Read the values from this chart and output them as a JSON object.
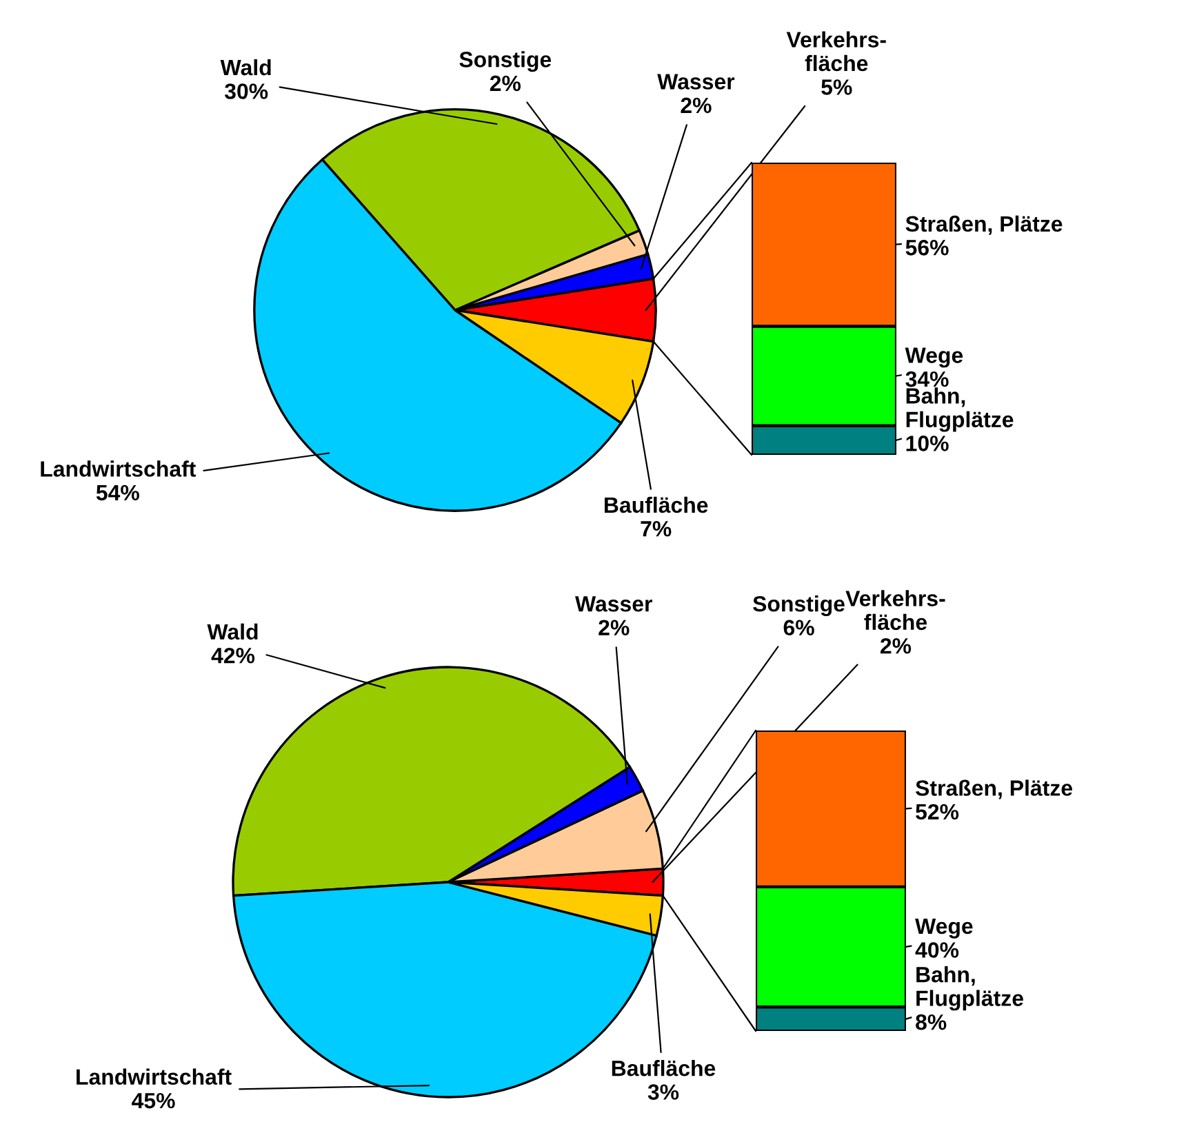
{
  "chart_data": [
    {
      "type": "pie",
      "categories": [
        "Verkehrs-\nfläche",
        "Wasser",
        "Sonstige",
        "Wald",
        "Landwirtschaft",
        "Baufläche"
      ],
      "values": [
        5,
        2,
        2,
        30,
        54,
        7
      ],
      "value_labels": [
        "5%",
        "2%",
        "2%",
        "30%",
        "54%",
        "7%"
      ],
      "colors": [
        "#ff0000",
        "#0000ff",
        "#ffcc99",
        "#99cc00",
        "#00ccff",
        "#ffcc00"
      ]
    },
    {
      "type": "bar",
      "stacked": true,
      "categories": [
        null
      ],
      "series": [
        {
          "name": "Bahn,\nFlugplätze",
          "color": "#008080",
          "values": [
            10
          ],
          "value_labels": [
            "10%"
          ]
        },
        {
          "name": "Wege",
          "color": "#00ff00",
          "values": [
            34
          ],
          "value_labels": [
            "34%"
          ]
        },
        {
          "name": "Straßen, Plätze",
          "color": "#ff6600",
          "values": [
            56
          ],
          "value_labels": [
            "56%"
          ]
        }
      ]
    },
    {
      "type": "pie",
      "categories": [
        "Verkehrs-\nfläche",
        "Sonstige",
        "Wasser",
        "Wald",
        "Landwirtschaft",
        "Baufläche"
      ],
      "values": [
        2,
        6,
        2,
        42,
        45,
        3
      ],
      "value_labels": [
        "2%",
        "6%",
        "2%",
        "42%",
        "45%",
        "3%"
      ],
      "colors": [
        "#ff0000",
        "#ffcc99",
        "#0000ff",
        "#99cc00",
        "#00ccff",
        "#ffcc00"
      ]
    },
    {
      "type": "bar",
      "stacked": true,
      "categories": [
        null
      ],
      "series": [
        {
          "name": "Bahn,\nFlugplätze",
          "color": "#008080",
          "values": [
            8
          ],
          "value_labels": [
            "8%"
          ]
        },
        {
          "name": "Wege",
          "color": "#00ff00",
          "values": [
            40
          ],
          "value_labels": [
            "40%"
          ]
        },
        {
          "name": "Straßen, Plätze",
          "color": "#ff6600",
          "values": [
            52
          ],
          "value_labels": [
            "52%"
          ]
        }
      ]
    }
  ]
}
